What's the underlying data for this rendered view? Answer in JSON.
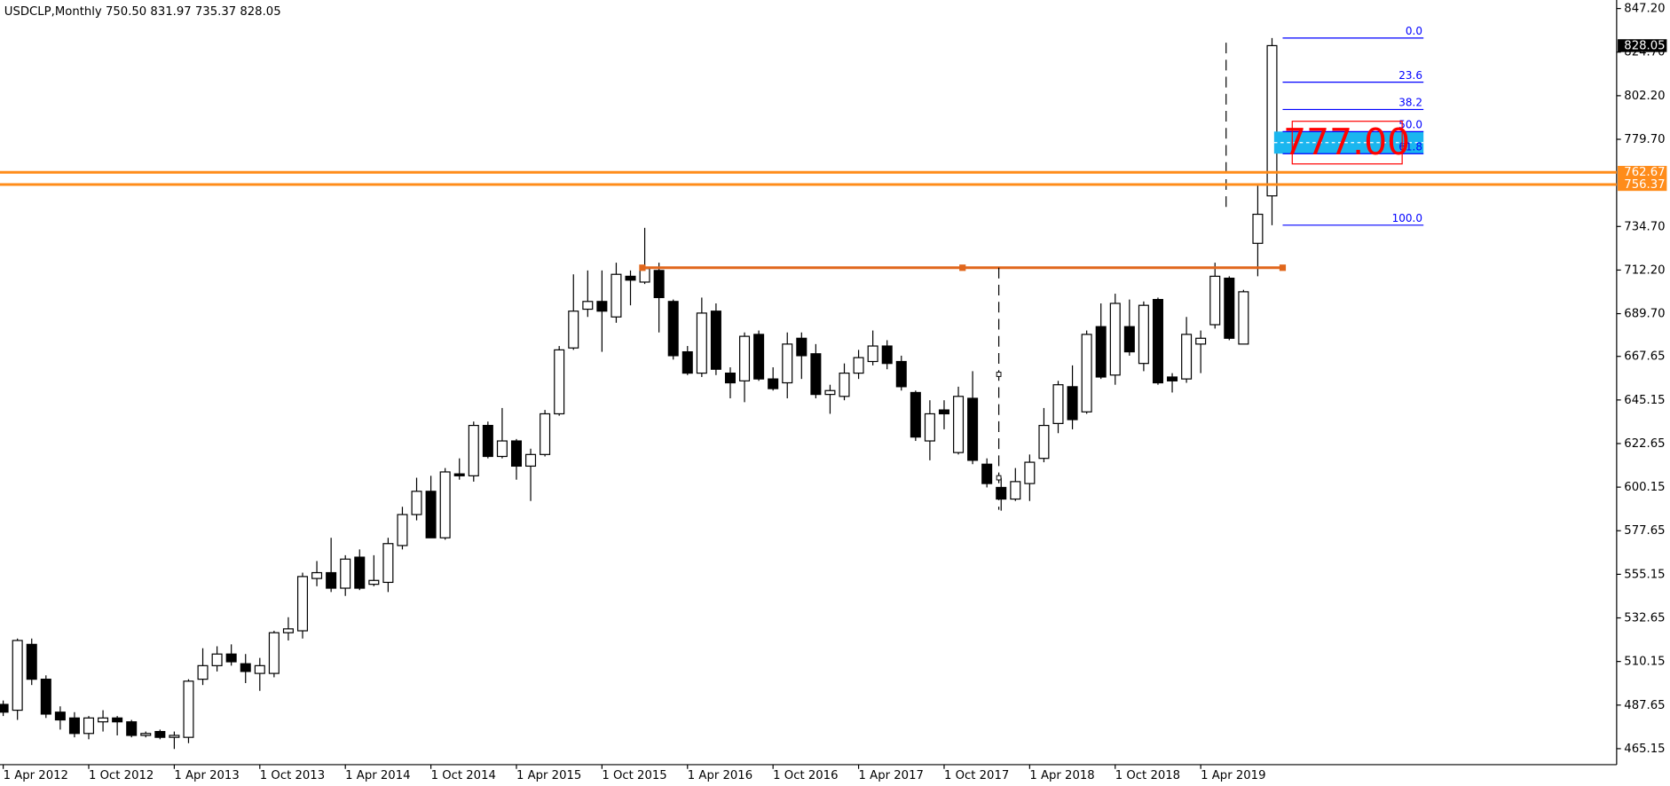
{
  "chart_data": {
    "type": "candlestick",
    "title": "USDCLP,Monthly  750.50 831.97 735.37 828.05",
    "categories": [
      "1 Apr 2012",
      null,
      null,
      null,
      null,
      null,
      "1 Oct 2012",
      null,
      null,
      null,
      null,
      null,
      "1 Apr 2013",
      null,
      null,
      null,
      null,
      null,
      "1 Oct 2013",
      null,
      null,
      null,
      null,
      null,
      "1 Apr 2014",
      null,
      null,
      null,
      null,
      null,
      "1 Oct 2014",
      null,
      null,
      null,
      null,
      null,
      "1 Apr 2015",
      null,
      null,
      null,
      null,
      null,
      "1 Oct 2015",
      null,
      null,
      null,
      null,
      null,
      "1 Apr 2016",
      null,
      null,
      null,
      null,
      null,
      "1 Oct 2016",
      null,
      null,
      null,
      null,
      null,
      "1 Apr 2017",
      null,
      null,
      null,
      null,
      null,
      "1 Oct 2017",
      null,
      null,
      null,
      null,
      null,
      "1 Apr 2018",
      null,
      null,
      null,
      null,
      null,
      "1 Oct 2018",
      null,
      null,
      null,
      null,
      null,
      "1 Apr 2019",
      null,
      null,
      null,
      null,
      null
    ],
    "open": [
      488,
      485,
      519,
      501,
      484,
      481,
      473,
      479,
      481,
      479,
      472,
      474,
      471,
      471,
      501,
      508,
      514,
      509,
      504,
      504,
      525,
      526,
      553,
      556,
      548,
      564,
      550,
      551,
      570,
      586,
      598,
      574,
      607,
      606,
      632,
      616,
      624,
      611,
      617,
      638,
      672,
      692,
      696,
      688,
      709,
      706,
      712,
      696,
      670,
      659,
      691,
      659,
      655,
      679,
      656,
      654,
      677,
      669,
      648,
      647,
      659,
      665,
      673,
      665,
      649,
      624,
      640,
      618,
      646,
      612,
      600,
      594,
      602,
      615,
      633,
      652,
      639,
      683,
      658,
      683,
      664,
      697,
      657,
      656,
      674,
      684,
      708,
      674,
      726,
      750.5
    ],
    "high": [
      490,
      522,
      522,
      503,
      487,
      484,
      482,
      485,
      482,
      480,
      474,
      475,
      474,
      501,
      517,
      518,
      519,
      514,
      512,
      526,
      533,
      556,
      562,
      574,
      565,
      568,
      565,
      574,
      590,
      605,
      606,
      610,
      615,
      634,
      634,
      641,
      625,
      620,
      640,
      673,
      710,
      712,
      712,
      716,
      712,
      734,
      716,
      697,
      673,
      698,
      695,
      662,
      680,
      681,
      662,
      680,
      680,
      674,
      653,
      664,
      671,
      681,
      676,
      668,
      650,
      645,
      645,
      652,
      660,
      615,
      605,
      610,
      617,
      641,
      655,
      663,
      681,
      695,
      700,
      697,
      696,
      698,
      659,
      688,
      681,
      716,
      709,
      702,
      757,
      831.97
    ],
    "low": [
      482,
      480,
      498,
      481,
      475,
      471,
      470,
      474,
      472,
      471,
      471,
      470,
      465,
      468,
      498,
      505,
      508,
      499,
      495,
      502,
      521,
      522,
      549,
      546,
      544,
      547,
      549,
      546,
      568,
      583,
      574,
      573,
      604,
      603,
      615,
      615,
      604,
      593,
      616,
      637,
      671,
      688,
      670,
      685,
      694,
      705,
      680,
      666,
      658,
      657,
      658,
      646,
      644,
      655,
      650,
      646,
      656,
      646,
      638,
      645,
      656,
      663,
      661,
      650,
      624,
      614,
      630,
      617,
      612,
      600,
      588,
      593,
      593,
      613,
      628,
      630,
      638,
      656,
      653,
      668,
      660,
      653,
      649,
      654,
      659,
      682,
      676,
      674,
      709,
      735.37
    ],
    "close": [
      484,
      521,
      501,
      483,
      480,
      473,
      481,
      481,
      479,
      472,
      473,
      471,
      472,
      500,
      508,
      514,
      510,
      505,
      508,
      525,
      527,
      554,
      556,
      548,
      563,
      548,
      552,
      571,
      586,
      598,
      574,
      608,
      606,
      632,
      616,
      624,
      611,
      617,
      638,
      671,
      691,
      696,
      691,
      710,
      707,
      713,
      698,
      668,
      659,
      690,
      661,
      654,
      678,
      656,
      651,
      674,
      668,
      648,
      650,
      659,
      667,
      673,
      664,
      652,
      626,
      638,
      638,
      647,
      614,
      602,
      594,
      603,
      613,
      632,
      653,
      635,
      679,
      657,
      695,
      670,
      694,
      654,
      655,
      679,
      677,
      709,
      677,
      701,
      741,
      828.05
    ],
    "up_color": "#ffffff",
    "down_color": "#000000",
    "ylim": [
      465.15,
      847.2
    ],
    "yticks": [
      {
        "value": 847.2,
        "label": "847.20"
      },
      {
        "value": 824.7,
        "label": "824.70"
      },
      {
        "value": 802.2,
        "label": "802.20"
      },
      {
        "value": 779.7,
        "label": "779.70"
      },
      {
        "value": 734.7,
        "label": "734.70"
      },
      {
        "value": 712.2,
        "label": "712.20"
      },
      {
        "value": 689.7,
        "label": "689.70"
      },
      667.65,
      645.15,
      622.65,
      600.15,
      577.65,
      555.15,
      532.65,
      510.15,
      487.65,
      465.15
    ],
    "hlines": [
      762.67,
      756.37
    ],
    "hline_color": "#ff8c1a",
    "last_price": 828.05,
    "trendline": 713.4,
    "trendline_color": "#e0661c",
    "fib": {
      "from": 735.37,
      "to": 831.97,
      "color": "#0000ff",
      "levels": [
        {
          "value": 0,
          "label": "0.0"
        },
        23.6,
        38.2,
        {
          "value": 50,
          "label": "50.0"
        },
        61.8,
        {
          "value": 100,
          "label": "100.0"
        }
      ]
    },
    "zone": [
      783.7,
      772.3
    ],
    "zone_color": "#1ab6ef",
    "annotation": "777.00",
    "annotation_color": "#ff0000"
  }
}
